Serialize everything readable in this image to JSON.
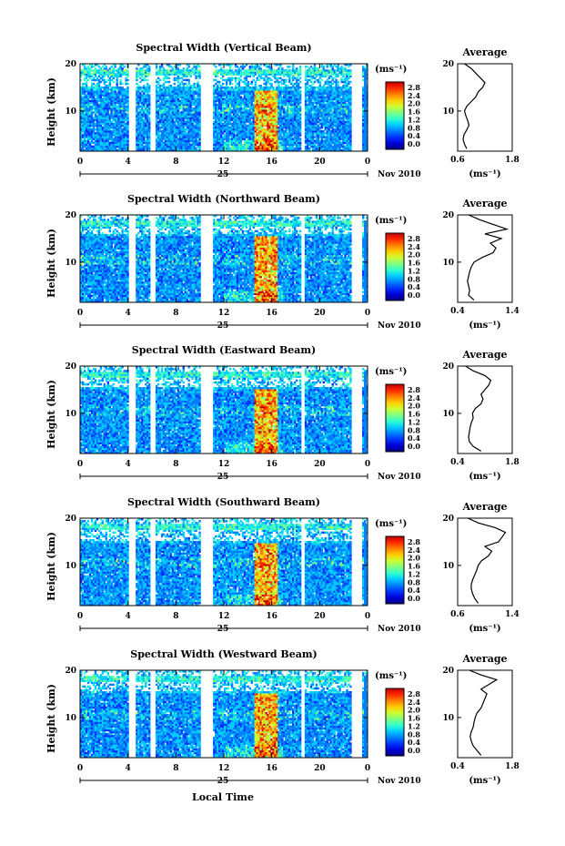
{
  "figure": {
    "xlabel": "Local Time",
    "ylabel": "Height (km)",
    "date_label": "Nov 2010",
    "day_label": "25",
    "colorbar_unit": "(ms⁻¹)",
    "colorbar_ticks": [
      "2.8",
      "2.4",
      "2.0",
      "1.6",
      "1.2",
      "0.8",
      "0.4",
      "0.0"
    ],
    "avg_title": "Average",
    "avg_unit": "(ms⁻¹)",
    "colormap": [
      "#00007f",
      "#0000d8",
      "#0033ff",
      "#0080ff",
      "#00ccff",
      "#33ffcc",
      "#80ff80",
      "#ccff33",
      "#ffcc00",
      "#ff8000",
      "#ff2a00",
      "#c00000"
    ]
  },
  "chart_data": [
    {
      "type": "heatmap",
      "title": "Spectral Width (Vertical Beam)",
      "x_ticks": [
        "0",
        "4",
        "8",
        "12",
        "16",
        "20",
        "0"
      ],
      "y_ticks": [
        "20",
        "10"
      ],
      "xlim": [
        0,
        24
      ],
      "ylim": [
        1.5,
        20
      ],
      "color_range": [
        0.0,
        3.0
      ],
      "data_gaps_hours": [
        [
          4.1,
          4.6
        ],
        [
          5.9,
          6.3
        ],
        [
          10.0,
          11.1
        ],
        [
          18.4,
          18.8
        ]
      ],
      "avg_profile": {
        "xlim": [
          0.6,
          1.8
        ],
        "x_ticks": [
          "0.6",
          "1.8"
        ],
        "y_ticks": [
          "20",
          "10"
        ],
        "height_km": [
          2,
          3,
          4,
          5,
          6,
          7,
          8,
          9,
          10,
          11,
          12,
          13,
          14,
          15,
          16,
          17,
          18,
          19,
          20
        ],
        "width_ms": [
          0.8,
          0.75,
          0.72,
          0.74,
          0.8,
          0.85,
          0.82,
          0.78,
          0.75,
          0.8,
          0.9,
          1.0,
          1.05,
          1.15,
          1.2,
          1.1,
          1.0,
          0.9,
          0.75
        ]
      }
    },
    {
      "type": "heatmap",
      "title": "Spectral Width (Northward Beam)",
      "x_ticks": [
        "0",
        "4",
        "8",
        "12",
        "16",
        "20",
        "0"
      ],
      "y_ticks": [
        "20",
        "10"
      ],
      "xlim": [
        0,
        24
      ],
      "ylim": [
        1.5,
        20
      ],
      "color_range": [
        0.0,
        3.0
      ],
      "data_gaps_hours": [
        [
          4.1,
          4.6
        ],
        [
          5.9,
          6.3
        ],
        [
          10.0,
          11.1
        ],
        [
          18.4,
          18.8
        ]
      ],
      "avg_profile": {
        "xlim": [
          0.4,
          1.4
        ],
        "x_ticks": [
          "0.4",
          "1.4"
        ],
        "y_ticks": [
          "20",
          "10"
        ],
        "height_km": [
          2,
          3,
          4,
          5,
          6,
          7,
          8,
          9,
          10,
          11,
          12,
          13,
          14,
          15,
          16,
          17,
          18,
          19,
          20
        ],
        "width_ms": [
          0.7,
          0.6,
          0.62,
          0.6,
          0.58,
          0.6,
          0.62,
          0.65,
          0.7,
          0.85,
          1.05,
          1.1,
          1.0,
          1.2,
          0.9,
          1.3,
          1.05,
          0.8,
          0.6
        ]
      }
    },
    {
      "type": "heatmap",
      "title": "Spectral Width (Eastward Beam)",
      "x_ticks": [
        "0",
        "4",
        "8",
        "12",
        "16",
        "20",
        "0"
      ],
      "y_ticks": [
        "20",
        "10"
      ],
      "xlim": [
        0,
        24
      ],
      "ylim": [
        1.5,
        20
      ],
      "color_range": [
        0.0,
        3.0
      ],
      "data_gaps_hours": [
        [
          4.1,
          4.6
        ],
        [
          5.9,
          6.3
        ],
        [
          10.0,
          11.1
        ],
        [
          18.4,
          18.8
        ]
      ],
      "avg_profile": {
        "xlim": [
          0.4,
          1.8
        ],
        "x_ticks": [
          "0.4",
          "1.8"
        ],
        "y_ticks": [
          "20",
          "10"
        ],
        "height_km": [
          2,
          3,
          4,
          5,
          6,
          7,
          8,
          9,
          10,
          11,
          12,
          13,
          14,
          15,
          16,
          17,
          18,
          19,
          20
        ],
        "width_ms": [
          1.0,
          0.8,
          0.7,
          0.68,
          0.7,
          0.72,
          0.75,
          0.8,
          0.78,
          0.85,
          1.0,
          1.05,
          1.0,
          1.1,
          1.2,
          1.25,
          1.1,
          0.8,
          0.6
        ]
      }
    },
    {
      "type": "heatmap",
      "title": "Spectral Width (Southward Beam)",
      "x_ticks": [
        "0",
        "4",
        "8",
        "12",
        "16",
        "20",
        "0"
      ],
      "y_ticks": [
        "20",
        "10"
      ],
      "xlim": [
        0,
        24
      ],
      "ylim": [
        1.5,
        20
      ],
      "color_range": [
        0.0,
        3.0
      ],
      "data_gaps_hours": [
        [
          4.1,
          4.6
        ],
        [
          5.9,
          6.3
        ],
        [
          10.0,
          11.1
        ],
        [
          18.4,
          18.8
        ]
      ],
      "avg_profile": {
        "xlim": [
          0.6,
          1.4
        ],
        "x_ticks": [
          "0.6",
          "1.4"
        ],
        "y_ticks": [
          "20",
          "10"
        ],
        "height_km": [
          2,
          3,
          4,
          5,
          6,
          7,
          8,
          9,
          10,
          11,
          12,
          13,
          14,
          15,
          16,
          17,
          18,
          19,
          20
        ],
        "width_ms": [
          0.9,
          0.85,
          0.82,
          0.8,
          0.8,
          0.82,
          0.85,
          0.88,
          0.9,
          0.95,
          1.05,
          1.1,
          1.0,
          1.2,
          1.25,
          1.3,
          1.15,
          0.9,
          0.75
        ]
      }
    },
    {
      "type": "heatmap",
      "title": "Spectral Width (Westward Beam)",
      "x_ticks": [
        "0",
        "4",
        "8",
        "12",
        "16",
        "20",
        "0"
      ],
      "y_ticks": [
        "20",
        "10"
      ],
      "xlim": [
        0,
        24
      ],
      "ylim": [
        1.5,
        20
      ],
      "color_range": [
        0.0,
        3.0
      ],
      "data_gaps_hours": [
        [
          4.1,
          4.6
        ],
        [
          5.9,
          6.3
        ],
        [
          10.0,
          11.1
        ],
        [
          18.4,
          18.8
        ]
      ],
      "avg_profile": {
        "xlim": [
          0.4,
          1.8
        ],
        "x_ticks": [
          "0.4",
          "1.8"
        ],
        "y_ticks": [
          "20",
          "10"
        ],
        "height_km": [
          2,
          3,
          4,
          5,
          6,
          7,
          8,
          9,
          10,
          11,
          12,
          13,
          14,
          15,
          16,
          17,
          18,
          19,
          20
        ],
        "width_ms": [
          1.0,
          0.9,
          0.8,
          0.75,
          0.72,
          0.75,
          0.8,
          0.82,
          0.85,
          0.9,
          1.0,
          1.05,
          1.1,
          1.15,
          1.0,
          1.2,
          1.4,
          1.0,
          0.7
        ]
      }
    }
  ]
}
